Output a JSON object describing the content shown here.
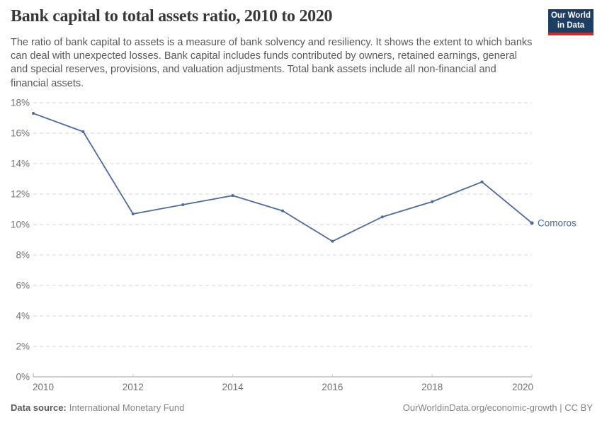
{
  "header": {
    "title": "Bank capital to total assets ratio, 2010 to 2020",
    "subtitle": "The ratio of bank capital to assets is a measure of bank solvency and resiliency. It shows the extent to which banks can deal with unexpected losses. Bank capital includes funds contributed by owners, retained earnings, general and special reserves, provisions, and valuation adjustments. Total bank assets include all non-financial and financial assets.",
    "logo": {
      "line1": "Our World",
      "line2": "in Data"
    }
  },
  "chart_data": {
    "type": "line",
    "title": "Bank capital to total assets ratio, 2010 to 2020",
    "x": [
      2010,
      2011,
      2012,
      2013,
      2014,
      2015,
      2016,
      2017,
      2018,
      2019,
      2020
    ],
    "series": [
      {
        "name": "Comoros",
        "values": [
          17.3,
          16.1,
          10.7,
          11.3,
          11.9,
          10.9,
          8.9,
          10.5,
          11.5,
          12.8,
          10.1
        ]
      }
    ],
    "xlabel": "",
    "ylabel": "",
    "ylim": [
      0,
      18
    ],
    "yticks": [
      0,
      2,
      4,
      6,
      8,
      10,
      12,
      14,
      16,
      18
    ],
    "ytick_suffix": "%",
    "xticks": [
      2010,
      2012,
      2014,
      2016,
      2018,
      2020
    ],
    "grid": "horizontal-dashed",
    "legend": "end-of-line-entity-label"
  },
  "footer": {
    "source_label": "Data source:",
    "source_value": "International Monetary Fund",
    "credit": "OurWorldinData.org/economic-growth | CC BY"
  },
  "colors": {
    "line": "#4C6A9C",
    "grid": "#d4d4d4",
    "axis": "#a1a1a1",
    "tick": "#cccccc",
    "axis_text": "#737373",
    "logo_navy": "#1d3d63",
    "logo_red": "#c5302b",
    "title_text": "#383838",
    "subtitle_text": "#595959"
  }
}
